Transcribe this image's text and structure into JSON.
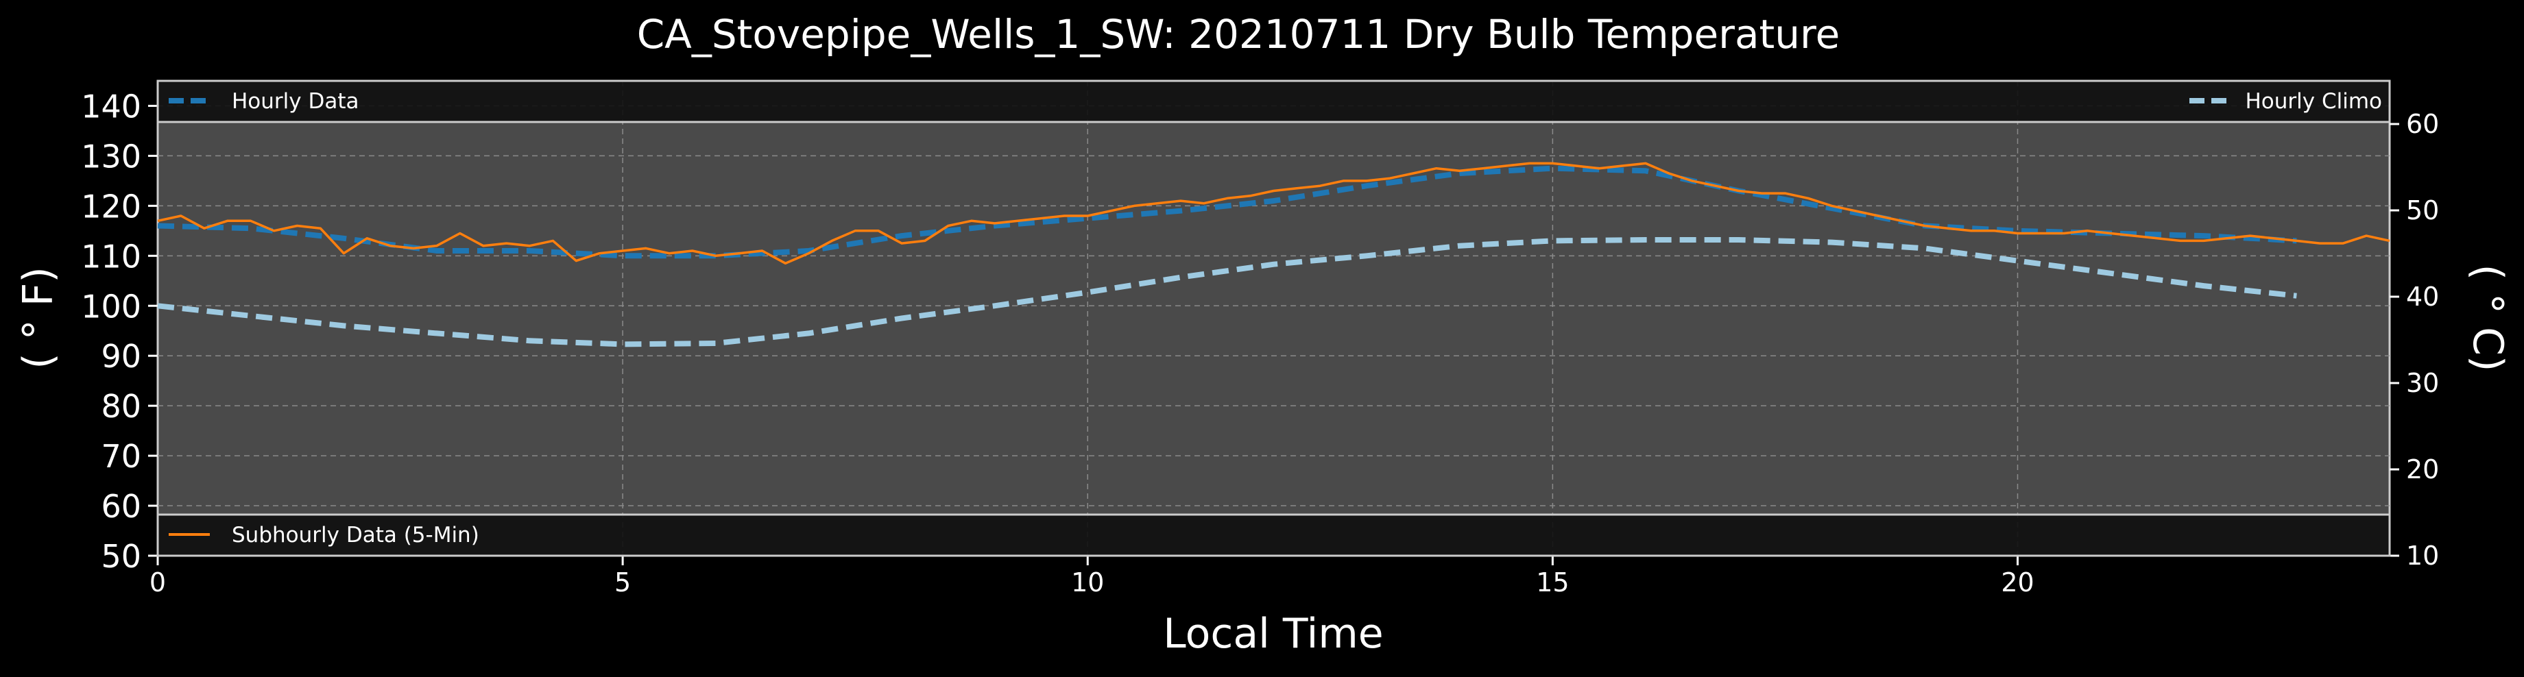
{
  "chart_data": {
    "type": "line",
    "title": "CA_Stovepipe_Wells_1_SW: 20210711 Dry Bulb Temperature",
    "xlabel": "Local Time",
    "ylabel_left": "( ° F)",
    "ylabel_right": "( ° C)",
    "xlim": [
      0,
      24
    ],
    "ylim_left": [
      50,
      145
    ],
    "ylim_right": [
      10,
      65
    ],
    "x_ticks": [
      0,
      5,
      10,
      15,
      20
    ],
    "y_ticks_left": [
      50,
      60,
      70,
      80,
      90,
      100,
      110,
      120,
      130,
      140
    ],
    "y_ticks_right": [
      10,
      20,
      30,
      40,
      50,
      60
    ],
    "grid": true,
    "legends": {
      "top_left": "Hourly Data",
      "top_right": "Hourly Climo",
      "bottom_left": "Subhourly Data (5-Min)"
    },
    "series": [
      {
        "name": "Hourly Data",
        "color": "#1f77b4",
        "style": "dashed",
        "x": [
          0,
          1,
          2,
          3,
          4,
          5,
          6,
          7,
          8,
          9,
          10,
          11,
          12,
          13,
          14,
          15,
          16,
          17,
          18,
          19,
          20,
          21,
          22,
          23
        ],
        "y": [
          116,
          115.5,
          113.5,
          111,
          111,
          110,
          110,
          111,
          114,
          116,
          117.5,
          119,
          121,
          124,
          126.5,
          127.5,
          127,
          123,
          119.5,
          116,
          115,
          114.5,
          114,
          113
        ]
      },
      {
        "name": "Hourly Climo",
        "color": "#9ecae1",
        "style": "dashed",
        "x": [
          0,
          1,
          2,
          3,
          4,
          5,
          6,
          7,
          8,
          9,
          10,
          11,
          12,
          13,
          14,
          15,
          16,
          17,
          18,
          19,
          20,
          21,
          22,
          23
        ],
        "y": [
          100,
          98,
          96,
          94.5,
          93,
          92.3,
          92.5,
          94.5,
          97.5,
          100,
          102.7,
          105.7,
          108.3,
          110,
          112,
          113,
          113.2,
          113.2,
          112.7,
          111.5,
          109,
          106.5,
          104,
          102
        ]
      },
      {
        "name": "Subhourly Data (5-Min)",
        "color": "#ff7f0e",
        "style": "solid",
        "x": [
          0,
          0.25,
          0.5,
          0.75,
          1,
          1.25,
          1.5,
          1.75,
          2,
          2.25,
          2.5,
          2.75,
          3,
          3.25,
          3.5,
          3.75,
          4,
          4.25,
          4.5,
          4.75,
          5,
          5.25,
          5.5,
          5.75,
          6,
          6.25,
          6.5,
          6.75,
          7,
          7.25,
          7.5,
          7.75,
          8,
          8.25,
          8.5,
          8.75,
          9,
          9.25,
          9.5,
          9.75,
          10,
          10.25,
          10.5,
          10.75,
          11,
          11.25,
          11.5,
          11.75,
          12,
          12.25,
          12.5,
          12.75,
          13,
          13.25,
          13.5,
          13.75,
          14,
          14.25,
          14.5,
          14.75,
          15,
          15.25,
          15.5,
          15.75,
          16,
          16.25,
          16.5,
          16.75,
          17,
          17.25,
          17.5,
          17.75,
          18,
          18.25,
          18.5,
          18.75,
          19,
          19.25,
          19.5,
          19.75,
          20,
          20.25,
          20.5,
          20.75,
          21,
          21.25,
          21.5,
          21.75,
          22,
          22.25,
          22.5,
          22.75,
          23,
          23.25,
          23.5,
          23.75,
          24
        ],
        "y": [
          117,
          118,
          115.5,
          117,
          117,
          115,
          116,
          115.5,
          110.5,
          113.5,
          112,
          111.5,
          112,
          114.5,
          112,
          112.5,
          112,
          113,
          109,
          110.5,
          111,
          111.5,
          110.5,
          111,
          110,
          110.5,
          111,
          108.5,
          110.5,
          113,
          115,
          115,
          112.5,
          113,
          116,
          117,
          116.5,
          117,
          117.5,
          118,
          118,
          119,
          120,
          120.5,
          121,
          120.5,
          121.5,
          122,
          123,
          123.5,
          124,
          125,
          125,
          125.5,
          126.5,
          127.5,
          127,
          127.5,
          128,
          128.5,
          128.5,
          128,
          127.5,
          128,
          128.5,
          126.5,
          125,
          124,
          123,
          122.5,
          122.5,
          121.5,
          120,
          119,
          118,
          117,
          116,
          115.5,
          115,
          115,
          114.5,
          114.5,
          114.5,
          115,
          114.5,
          114,
          113.5,
          113,
          113,
          113.5,
          114,
          113.5,
          113,
          112.5,
          112.5,
          114,
          113
        ]
      }
    ]
  }
}
